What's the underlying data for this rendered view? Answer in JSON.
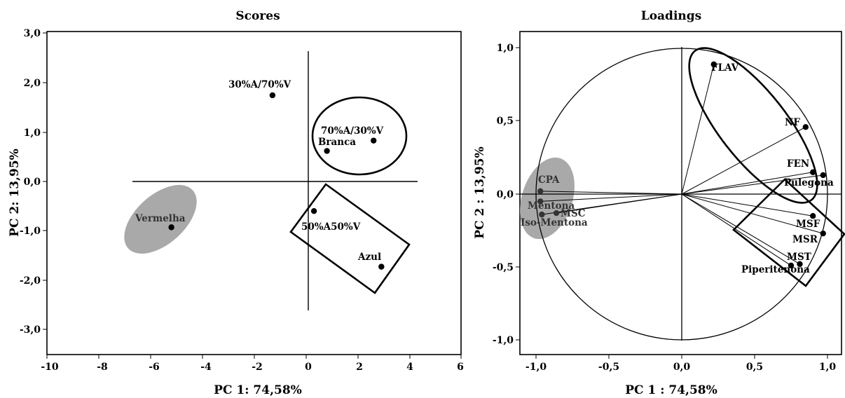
{
  "chart_data": [
    {
      "type": "scatter",
      "title": "Scores",
      "xlabel": "PC 1: 74,58%",
      "ylabel": "PC 2: 13,95%",
      "xlim": [
        -10,
        6
      ],
      "ylim": [
        -3.5,
        3.0
      ],
      "x_ticks": [
        "-10",
        "-8",
        "-6",
        "-4",
        "-2",
        "0",
        "2",
        "4",
        "6"
      ],
      "y_ticks": [
        "3,0",
        "2,0",
        "1,0",
        "0,0",
        "-1,0",
        "-2,0",
        "-3,0"
      ],
      "points": [
        {
          "label": "30%A/70%V",
          "x": -1.3,
          "y": 1.75
        },
        {
          "label": "70%A/30%V",
          "x": 2.6,
          "y": 0.83
        },
        {
          "label": "Branca",
          "x": 0.8,
          "y": 0.62
        },
        {
          "label": "Vermelha",
          "x": -5.2,
          "y": -0.93
        },
        {
          "label": "50%A50%V",
          "x": 0.3,
          "y": -0.6
        },
        {
          "label": "Azul",
          "x": 2.9,
          "y": -1.73
        }
      ]
    },
    {
      "type": "scatter",
      "title": "Loadings",
      "xlabel": "PC 1 : 74,58%",
      "ylabel": "PC 2 : 13,95%",
      "xlim": [
        -1.1,
        1.1
      ],
      "ylim": [
        -1.1,
        1.1
      ],
      "x_ticks": [
        "-1,0",
        "-0,5",
        "0,0",
        "0,5",
        "1,0"
      ],
      "y_ticks": [
        "1,0",
        "0,5",
        "0,0",
        "-0,5",
        "-1,0"
      ],
      "unit_circle": true,
      "points": [
        {
          "label": "FLAV",
          "x": 0.22,
          "y": 0.89
        },
        {
          "label": "NF",
          "x": 0.85,
          "y": 0.46
        },
        {
          "label": "FEN",
          "x": 0.9,
          "y": 0.15
        },
        {
          "label": "Pulegona",
          "x": 0.97,
          "y": 0.13
        },
        {
          "label": "CPA",
          "x": -0.97,
          "y": 0.02
        },
        {
          "label": "Mentona",
          "x": -0.97,
          "y": -0.05
        },
        {
          "label": "MSC",
          "x": -0.86,
          "y": -0.13
        },
        {
          "label": "Iso-Mentona",
          "x": -0.96,
          "y": -0.14
        },
        {
          "label": "MSF",
          "x": 0.9,
          "y": -0.15
        },
        {
          "label": "MSR",
          "x": 0.97,
          "y": -0.27
        },
        {
          "label": "MST",
          "x": 0.81,
          "y": -0.48
        },
        {
          "label": "Piperitenona",
          "x": 0.75,
          "y": -0.49
        }
      ]
    }
  ]
}
